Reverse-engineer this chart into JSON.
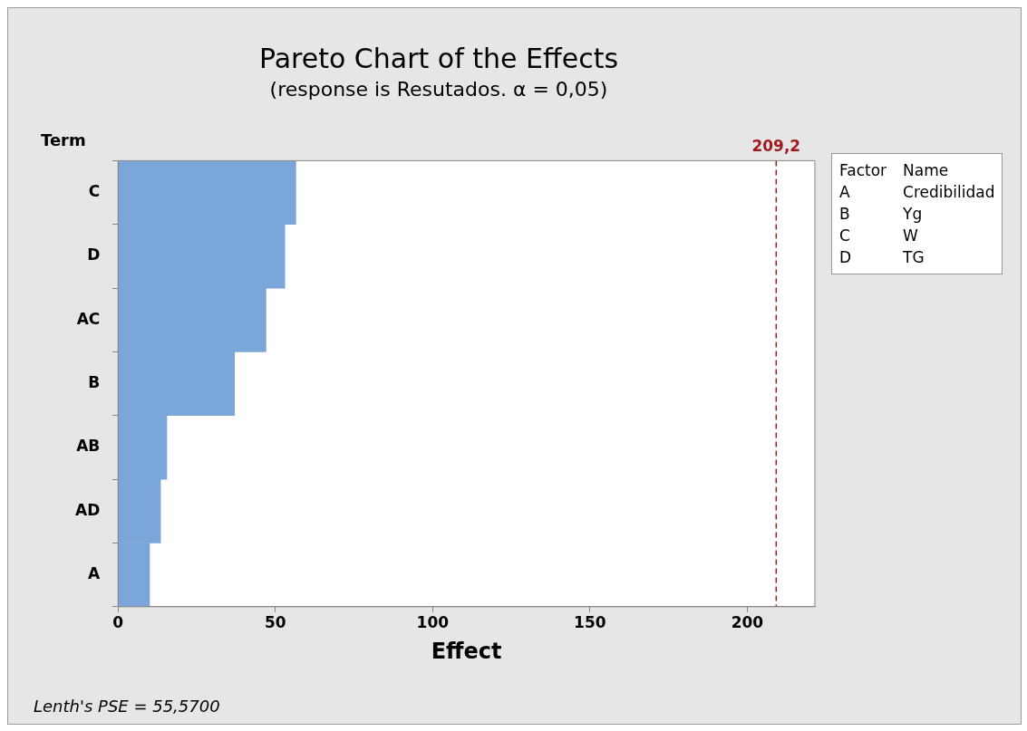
{
  "chart_data": {
    "type": "bar",
    "orientation": "horizontal",
    "title": "Pareto Chart of the Effects",
    "subtitle": "(response is Resutados. α = 0,05)",
    "xlabel": "Effect",
    "ylabel": "Term",
    "categories": [
      "C",
      "D",
      "AC",
      "B",
      "AB",
      "AD",
      "A"
    ],
    "values": [
      56.5,
      53,
      47,
      37,
      15.5,
      13.5,
      10
    ],
    "color": "#7ba6da",
    "xlim": [
      0,
      221.5
    ],
    "xticks": [
      0,
      50,
      100,
      150,
      200
    ],
    "grid": false,
    "legend": false,
    "ref_lines": [
      {
        "axis": "x",
        "value": 209.2,
        "label": "209,2",
        "color": "#a01c1c",
        "line_style": "dashed"
      }
    ],
    "annotations": [
      "Factor",
      "Name",
      "A",
      "Credibilidad",
      "B",
      "Yg",
      "C",
      "W",
      "D",
      "TG",
      "Lenth's PSE = 55,5700"
    ]
  }
}
